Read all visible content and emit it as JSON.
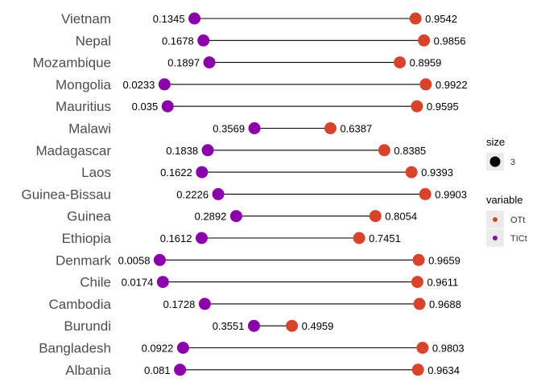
{
  "chart_data": {
    "type": "dumbbell",
    "categories": [
      "Vietnam",
      "Nepal",
      "Mozambique",
      "Mongolia",
      "Mauritius",
      "Malawi",
      "Madagascar",
      "Laos",
      "Guinea-Bissau",
      "Guinea",
      "Ethiopia",
      "Denmark",
      "Chile",
      "Cambodia",
      "Burundi",
      "Bangladesh",
      "Albania"
    ],
    "series": [
      {
        "name": "TICt",
        "color": "#8B00A8",
        "values": [
          0.1345,
          0.1678,
          0.1897,
          0.0233,
          0.035,
          0.3569,
          0.1838,
          0.1622,
          0.2226,
          0.2892,
          0.1612,
          0.0058,
          0.0174,
          0.1728,
          0.3551,
          0.0922,
          0.081
        ],
        "labels": [
          "0.1345",
          "0.1678",
          "0.1897",
          "0.0233",
          "0.035",
          "0.3569",
          "0.1838",
          "0.1622",
          "0.2226",
          "0.2892",
          "0.1612",
          "0.0058",
          "0.0174",
          "0.1728",
          "0.3551",
          "0.0922",
          "0.081"
        ]
      },
      {
        "name": "OTt",
        "color": "#D8432C",
        "values": [
          0.9542,
          0.9856,
          0.8959,
          0.9922,
          0.9595,
          0.6387,
          0.8385,
          0.9393,
          0.9903,
          0.8054,
          0.7451,
          0.9659,
          0.9611,
          0.9688,
          0.4959,
          0.9803,
          0.9634
        ],
        "labels": [
          "0.9542",
          "0.9856",
          "0.8959",
          "0.9922",
          "0.9595",
          "0.6387",
          "0.8385",
          "0.9393",
          "0.9903",
          "0.8054",
          "0.7451",
          "0.9659",
          "0.9611",
          "0.9688",
          "0.4959",
          "0.9803",
          "0.9634"
        ]
      }
    ],
    "xlim": [
      0,
      1
    ],
    "legend": {
      "position": "right",
      "size_title": "size",
      "size_value": "3",
      "variable_title": "variable",
      "variable_entries": [
        "OTt",
        "TICt"
      ]
    },
    "grid": false
  }
}
